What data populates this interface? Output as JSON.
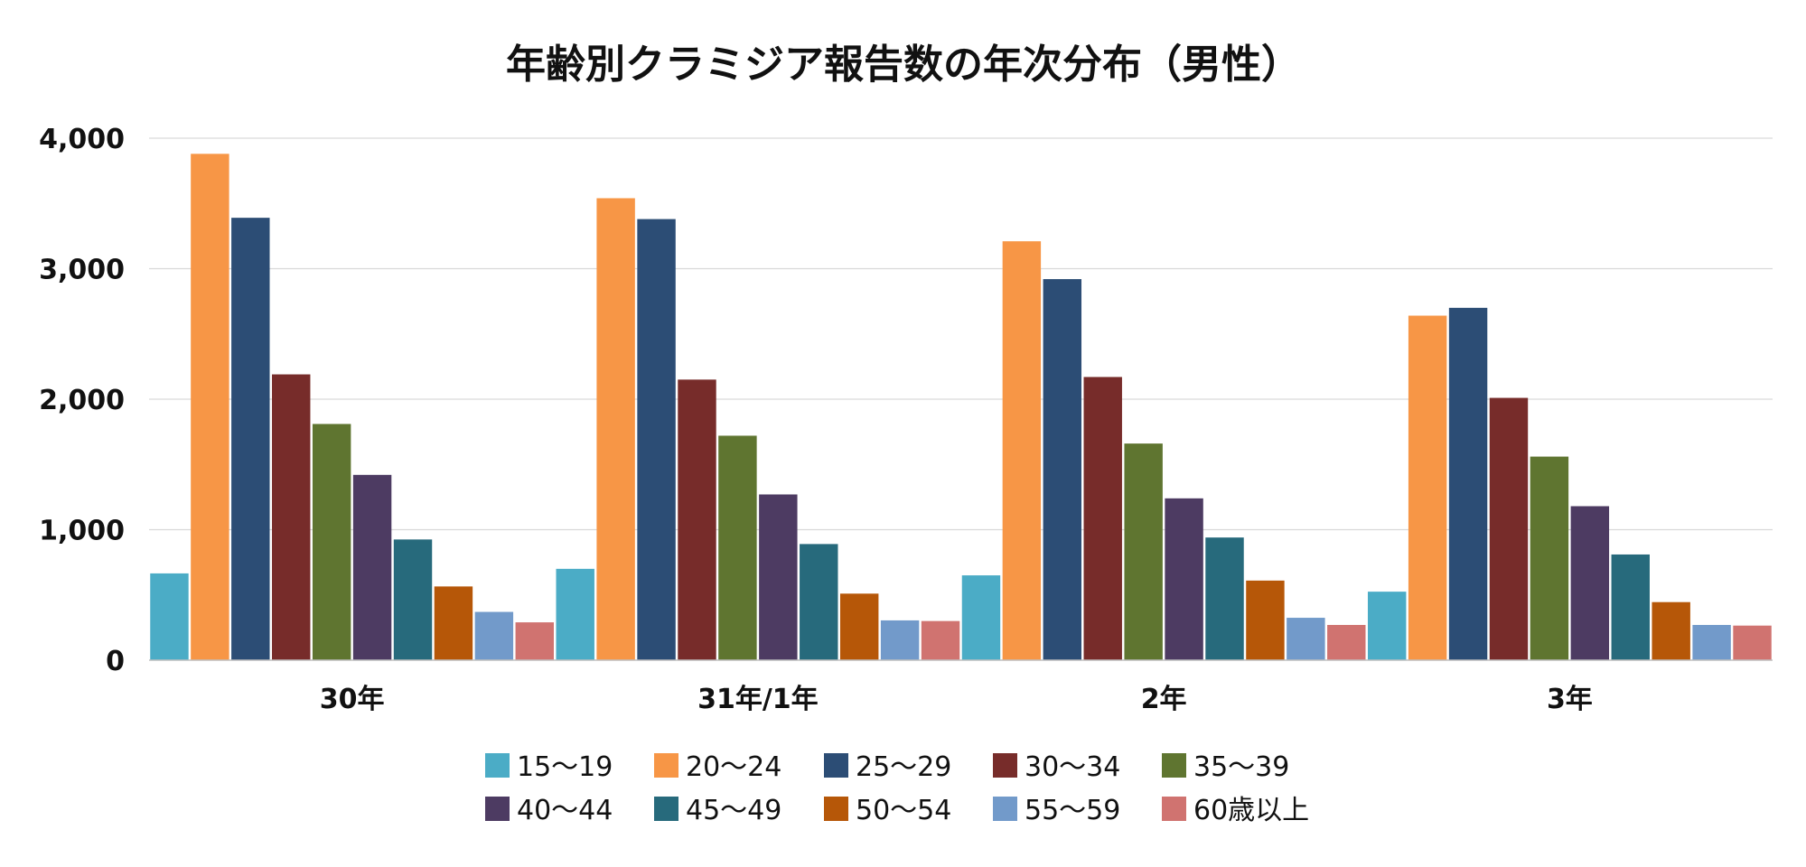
{
  "chart_data": {
    "type": "bar",
    "title": "年齢別クラミジア報告数の年次分布（男性）",
    "xlabel": "",
    "ylabel": "",
    "ylim": [
      0,
      4000
    ],
    "yticks": [
      0,
      1000,
      2000,
      3000,
      4000
    ],
    "ytick_labels": [
      "0",
      "1,000",
      "2,000",
      "3,000",
      "4,000"
    ],
    "grid": true,
    "legend_position": "bottom",
    "categories": [
      "30年",
      "31年/1年",
      "2年",
      "3年"
    ],
    "series": [
      {
        "name": "15～19",
        "color": "#4bacc6",
        "values": [
          665,
          700,
          650,
          525
        ]
      },
      {
        "name": "20～24",
        "color": "#f79646",
        "values": [
          3880,
          3540,
          3210,
          2640
        ]
      },
      {
        "name": "25～29",
        "color": "#2c4d75",
        "values": [
          3390,
          3380,
          2920,
          2700
        ]
      },
      {
        "name": "30～34",
        "color": "#772c2a",
        "values": [
          2190,
          2150,
          2170,
          2010
        ]
      },
      {
        "name": "35～39",
        "color": "#5f7530",
        "values": [
          1810,
          1720,
          1660,
          1560
        ]
      },
      {
        "name": "40～44",
        "color": "#4d3b62",
        "values": [
          1420,
          1270,
          1240,
          1180
        ]
      },
      {
        "name": "45～49",
        "color": "#276a7c",
        "values": [
          925,
          890,
          940,
          810
        ]
      },
      {
        "name": "50～54",
        "color": "#b65708",
        "values": [
          565,
          510,
          610,
          445
        ]
      },
      {
        "name": "55～59",
        "color": "#729aca",
        "values": [
          370,
          305,
          325,
          270
        ]
      },
      {
        "name": "60歳以上",
        "color": "#d07370",
        "values": [
          290,
          300,
          270,
          265
        ]
      }
    ]
  }
}
